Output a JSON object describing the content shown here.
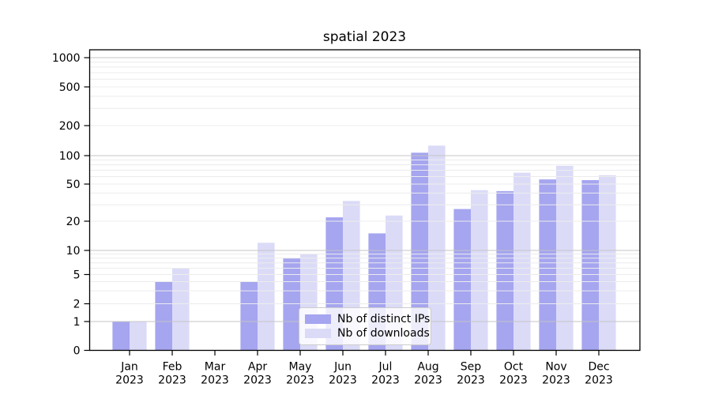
{
  "chart_data": {
    "type": "bar",
    "title": "spatial 2023",
    "xlabel": "",
    "ylabel": "",
    "yscale": "symlog",
    "ylim": [
      0,
      1200
    ],
    "grid": "both",
    "legend_position": "lower center",
    "categories": [
      "Jan",
      "Feb",
      "Mar",
      "Apr",
      "May",
      "Jun",
      "Jul",
      "Aug",
      "Sep",
      "Oct",
      "Nov",
      "Dec"
    ],
    "xtick_year": "2023",
    "yticks": [
      0,
      1,
      2,
      5,
      10,
      20,
      50,
      100,
      200,
      500,
      1000
    ],
    "series": [
      {
        "name": "Nb of distinct IPs",
        "color": "#a5a5f0",
        "values": [
          1,
          4,
          0,
          4,
          8,
          22,
          15,
          107,
          27,
          42,
          56,
          55
        ]
      },
      {
        "name": "Nb of downloads",
        "color": "#dbdbf8",
        "values": [
          1,
          6,
          0,
          12,
          9,
          33,
          23,
          126,
          43,
          66,
          78,
          62
        ]
      }
    ]
  }
}
